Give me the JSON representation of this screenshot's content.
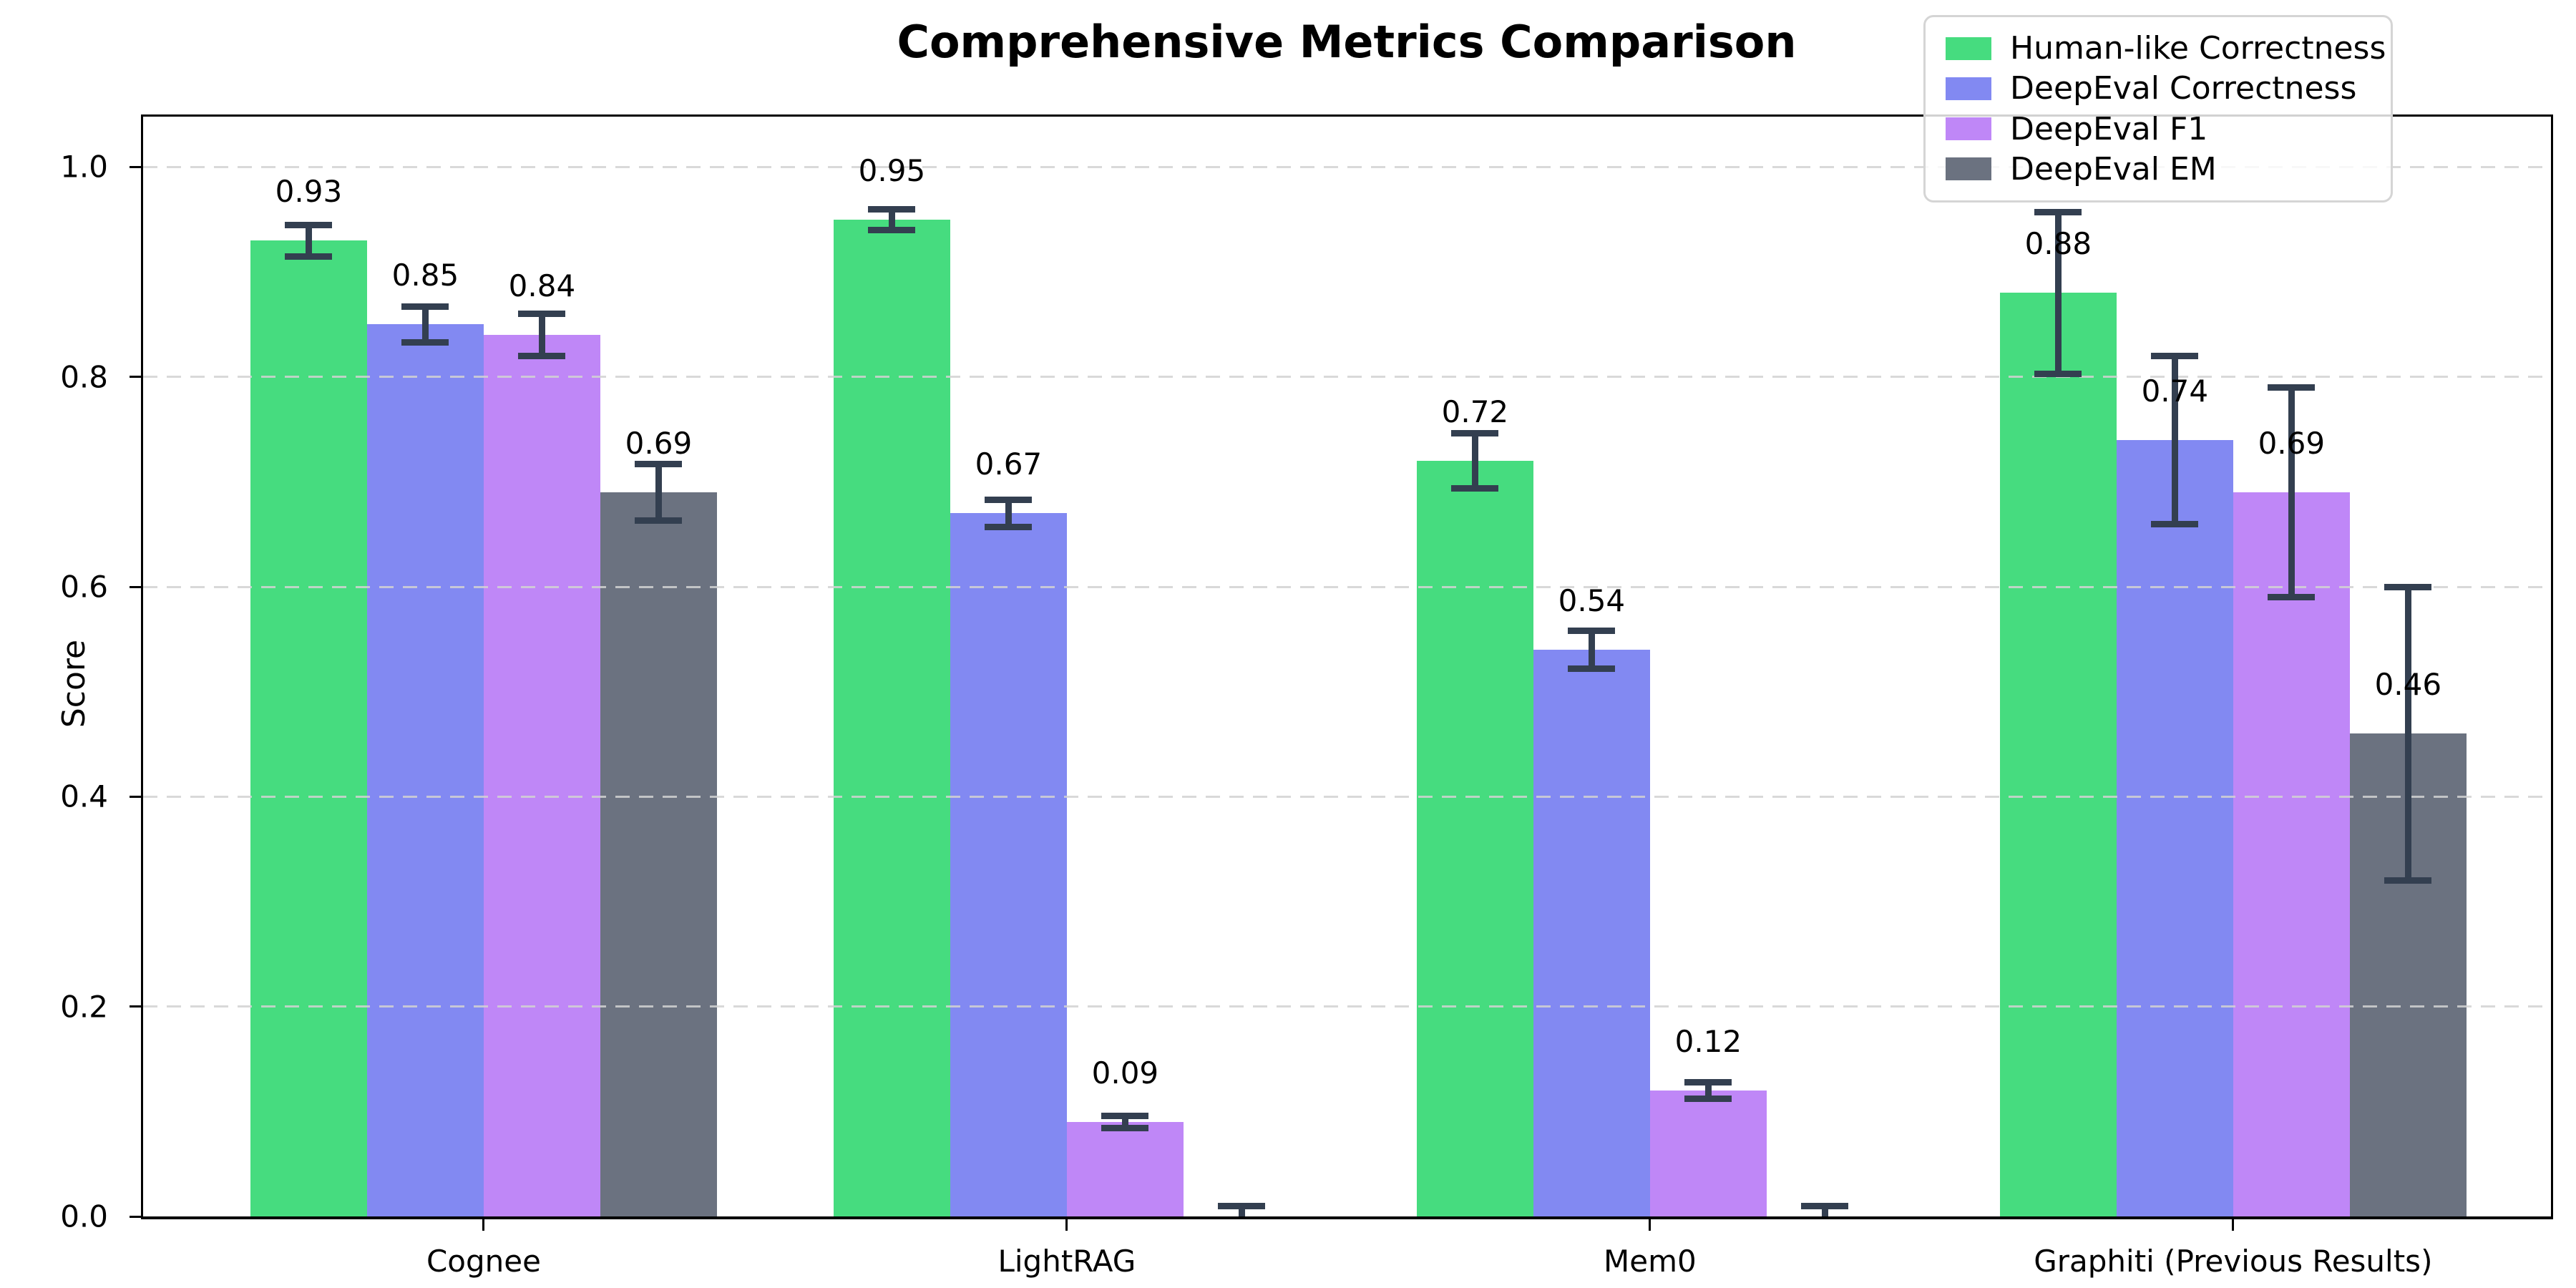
{
  "chart_data": {
    "type": "bar",
    "title": "Comprehensive Metrics Comparison",
    "xlabel": "",
    "ylabel": "Score",
    "categories": [
      "Cognee",
      "LightRAG",
      "Mem0",
      "Graphiti (Previous Results)"
    ],
    "ylim": [
      0,
      1.05
    ],
    "yticks": [
      0.0,
      0.2,
      0.4,
      0.6,
      0.8,
      1.0
    ],
    "ytick_labels": [
      "0.0",
      "0.2",
      "0.4",
      "0.6",
      "0.8",
      "1.0"
    ],
    "grid": "horizontal dashed lightgray, drawn over bars",
    "legend_position": "upper right",
    "error_bar_color": "#333f50",
    "series": [
      {
        "name": "Human-like Correctness",
        "color": "#46dc7f",
        "values": [
          0.93,
          0.95,
          0.72,
          0.88
        ],
        "errors": [
          0.015,
          0.01,
          0.026,
          0.077
        ],
        "labels": [
          "0.93",
          "0.95",
          "0.72",
          "0.88"
        ]
      },
      {
        "name": "DeepEval Correctness",
        "color": "#8289f2",
        "values": [
          0.85,
          0.67,
          0.54,
          0.74
        ],
        "errors": [
          0.017,
          0.013,
          0.018,
          0.08
        ],
        "labels": [
          "0.85",
          "0.67",
          "0.54",
          "0.74"
        ]
      },
      {
        "name": "DeepEval F1",
        "color": "#bf87f7",
        "values": [
          0.84,
          0.09,
          0.12,
          0.69
        ],
        "errors": [
          0.02,
          0.006,
          0.008,
          0.1
        ],
        "labels": [
          "0.84",
          "0.09",
          "0.12",
          "0.69"
        ]
      },
      {
        "name": "DeepEval EM",
        "color": "#6b7280",
        "values": [
          0.69,
          0.0,
          0.0,
          0.46
        ],
        "errors": [
          0.027,
          0.01,
          0.01,
          0.14
        ],
        "labels": [
          "0.69",
          null,
          null,
          "0.46"
        ]
      }
    ]
  }
}
